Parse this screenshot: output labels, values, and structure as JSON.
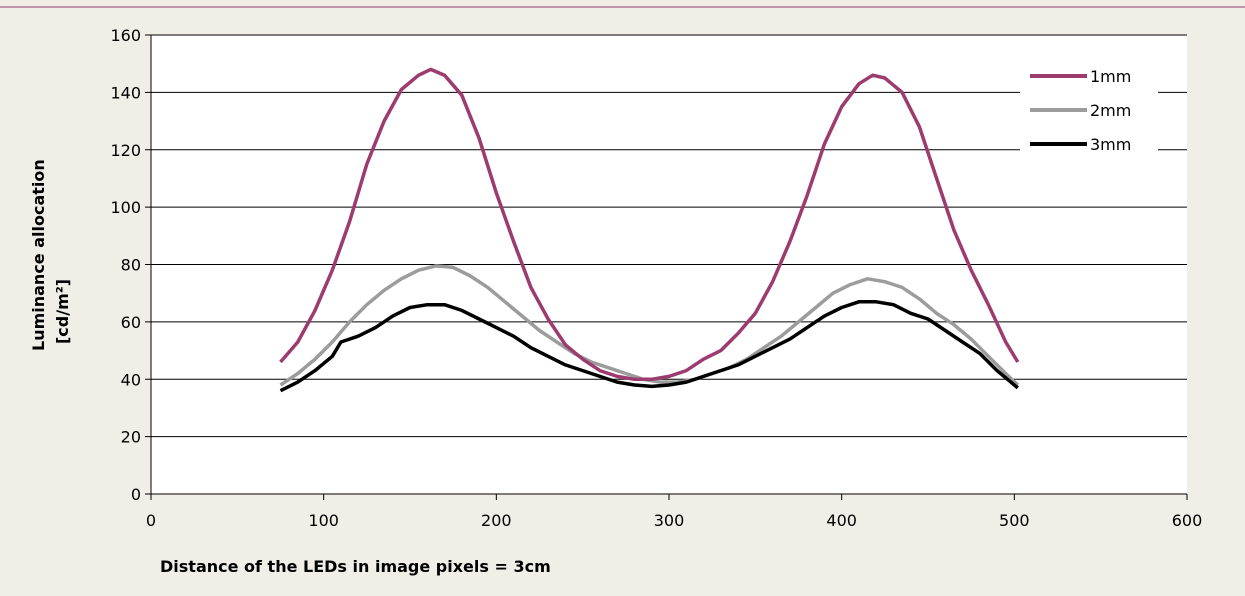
{
  "colors": {
    "background": "#f1eee8",
    "plot_background": "#ffffff",
    "top_rule": "#8e3b6a",
    "gridline": "#000000",
    "series_1mm": "#9b3b6e",
    "series_2mm": "#9c9c9c",
    "series_3mm": "#000000"
  },
  "chart_data": {
    "type": "line",
    "title": "",
    "xlabel": "Distance of the LEDs in image pixels = 3cm",
    "ylabel_lines": [
      "Luminance allocation",
      "[cd/m²]"
    ],
    "xlim": [
      0,
      600
    ],
    "ylim": [
      0,
      160
    ],
    "x_ticks": [
      0,
      100,
      200,
      300,
      400,
      500,
      600
    ],
    "y_ticks": [
      0,
      20,
      40,
      60,
      80,
      100,
      120,
      140,
      160
    ],
    "grid": "horizontal",
    "legend_position": "top-right",
    "series": [
      {
        "name": "1mm",
        "color": "#9b3b6e",
        "points": [
          [
            75,
            46
          ],
          [
            85,
            53
          ],
          [
            95,
            64
          ],
          [
            105,
            78
          ],
          [
            115,
            95
          ],
          [
            125,
            115
          ],
          [
            135,
            130
          ],
          [
            145,
            141
          ],
          [
            155,
            146
          ],
          [
            162,
            148
          ],
          [
            170,
            146
          ],
          [
            180,
            139
          ],
          [
            190,
            124
          ],
          [
            200,
            105
          ],
          [
            210,
            88
          ],
          [
            220,
            72
          ],
          [
            230,
            61
          ],
          [
            240,
            52
          ],
          [
            250,
            47
          ],
          [
            260,
            43
          ],
          [
            270,
            41
          ],
          [
            280,
            40
          ],
          [
            290,
            40
          ],
          [
            300,
            41
          ],
          [
            310,
            43
          ],
          [
            320,
            47
          ],
          [
            330,
            50
          ],
          [
            340,
            56
          ],
          [
            350,
            63
          ],
          [
            360,
            74
          ],
          [
            370,
            88
          ],
          [
            380,
            104
          ],
          [
            390,
            122
          ],
          [
            400,
            135
          ],
          [
            410,
            143
          ],
          [
            418,
            146
          ],
          [
            425,
            145
          ],
          [
            435,
            140
          ],
          [
            445,
            128
          ],
          [
            455,
            110
          ],
          [
            465,
            92
          ],
          [
            475,
            78
          ],
          [
            485,
            66
          ],
          [
            495,
            53
          ],
          [
            502,
            46
          ]
        ]
      },
      {
        "name": "2mm",
        "color": "#9c9c9c",
        "points": [
          [
            75,
            38
          ],
          [
            85,
            42
          ],
          [
            95,
            47
          ],
          [
            105,
            53
          ],
          [
            115,
            60
          ],
          [
            125,
            66
          ],
          [
            135,
            71
          ],
          [
            145,
            75
          ],
          [
            155,
            78
          ],
          [
            165,
            79.5
          ],
          [
            175,
            79
          ],
          [
            185,
            76
          ],
          [
            195,
            72
          ],
          [
            205,
            67
          ],
          [
            215,
            62
          ],
          [
            225,
            57
          ],
          [
            235,
            53
          ],
          [
            245,
            49
          ],
          [
            255,
            46
          ],
          [
            265,
            44
          ],
          [
            275,
            42
          ],
          [
            285,
            40
          ],
          [
            295,
            39
          ],
          [
            305,
            39
          ],
          [
            315,
            40
          ],
          [
            325,
            42
          ],
          [
            335,
            44
          ],
          [
            345,
            47
          ],
          [
            355,
            51
          ],
          [
            365,
            55
          ],
          [
            375,
            60
          ],
          [
            385,
            65
          ],
          [
            395,
            70
          ],
          [
            405,
            73
          ],
          [
            415,
            75
          ],
          [
            425,
            74
          ],
          [
            435,
            72
          ],
          [
            445,
            68
          ],
          [
            455,
            63
          ],
          [
            465,
            59
          ],
          [
            475,
            54
          ],
          [
            485,
            48
          ],
          [
            495,
            42
          ],
          [
            502,
            38
          ]
        ]
      },
      {
        "name": "3mm",
        "color": "#000000",
        "points": [
          [
            75,
            36
          ],
          [
            85,
            39
          ],
          [
            95,
            43
          ],
          [
            105,
            48
          ],
          [
            110,
            53
          ],
          [
            120,
            55
          ],
          [
            130,
            58
          ],
          [
            140,
            62
          ],
          [
            150,
            65
          ],
          [
            160,
            66
          ],
          [
            170,
            66
          ],
          [
            180,
            64
          ],
          [
            190,
            61
          ],
          [
            200,
            58
          ],
          [
            210,
            55
          ],
          [
            220,
            51
          ],
          [
            230,
            48
          ],
          [
            240,
            45
          ],
          [
            250,
            43
          ],
          [
            260,
            41
          ],
          [
            270,
            39
          ],
          [
            280,
            38
          ],
          [
            290,
            37.5
          ],
          [
            300,
            38
          ],
          [
            310,
            39
          ],
          [
            320,
            41
          ],
          [
            330,
            43
          ],
          [
            340,
            45
          ],
          [
            350,
            48
          ],
          [
            360,
            51
          ],
          [
            370,
            54
          ],
          [
            380,
            58
          ],
          [
            390,
            62
          ],
          [
            400,
            65
          ],
          [
            410,
            67
          ],
          [
            420,
            67
          ],
          [
            430,
            66
          ],
          [
            440,
            63
          ],
          [
            450,
            61
          ],
          [
            460,
            57
          ],
          [
            470,
            53
          ],
          [
            480,
            49
          ],
          [
            490,
            43
          ],
          [
            502,
            37
          ]
        ]
      }
    ]
  }
}
